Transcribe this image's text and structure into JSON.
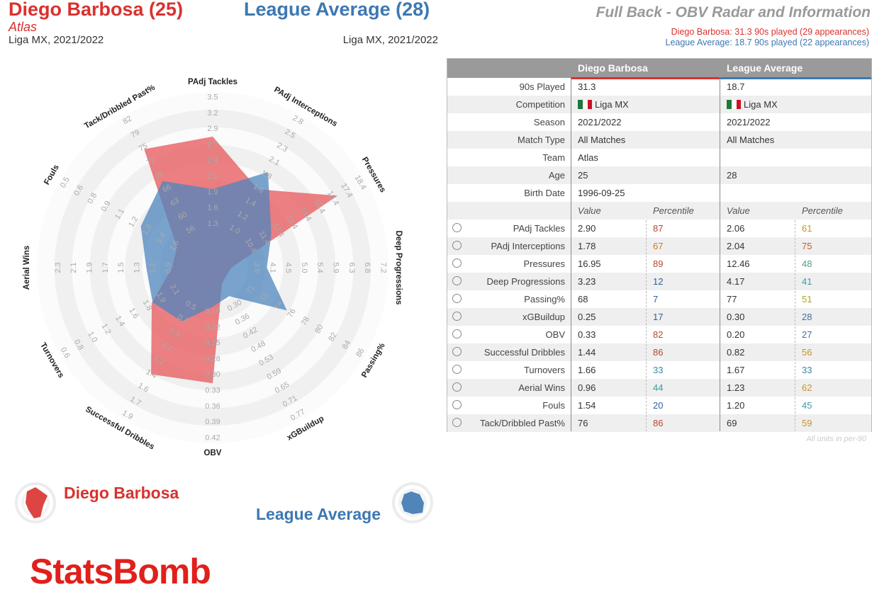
{
  "header": {
    "player_title": "Diego Barbosa (25)",
    "player_team": "Atlas",
    "player_league": "Liga MX, 2021/2022",
    "avg_title": "League Average (28)",
    "avg_league": "Liga MX, 2021/2022",
    "right_title": "Full Back - OBV Radar and Information",
    "player_line": "Diego Barbosa: 31.3 90s played (29 appearances)",
    "avg_line": "League Average: 18.7 90s played (22 appearances)"
  },
  "colors": {
    "player": "#d9312f",
    "average": "#3d78b2",
    "ring": "#efefef"
  },
  "chart_data": {
    "type": "radar",
    "series": [
      {
        "name": "Diego Barbosa",
        "color": "#e8696b",
        "values": [
          2.9,
          1.78,
          16.95,
          3.23,
          68,
          0.25,
          0.33,
          1.44,
          1.66,
          0.96,
          1.54,
          76
        ]
      },
      {
        "name": "League Average",
        "color": "#4e86bd",
        "values": [
          2.06,
          2.04,
          12.46,
          4.17,
          77,
          0.3,
          0.2,
          0.82,
          1.67,
          1.23,
          1.2,
          69
        ]
      }
    ],
    "axes": [
      {
        "label": "PAdj Tackles",
        "ticks": [
          "1.3",
          "1.6",
          "1.9",
          "2.1",
          "2.4",
          "2.7",
          "2.9",
          "3.2",
          "3.5"
        ],
        "min": 1.05,
        "max": 3.5
      },
      {
        "label": "PAdj Interceptions",
        "ticks": [
          "1.0",
          "1.2",
          "1.4",
          "1.6",
          "1.8",
          "2.1",
          "2.3",
          "2.5",
          "2.8"
        ],
        "min": 0.8,
        "max": 2.8
      },
      {
        "label": "Pressures",
        "ticks": [
          "10.4",
          "11.4",
          "12.4",
          "13.4",
          "14.4",
          "15.4",
          "16.4",
          "17.4",
          "18.4"
        ],
        "min": 9.4,
        "max": 18.4
      },
      {
        "label": "Deep Progressions",
        "ticks": [
          "3.6",
          "4.1",
          "4.5",
          "5.0",
          "5.4",
          "5.9",
          "6.3",
          "6.8",
          "7.2"
        ],
        "min": 3.15,
        "max": 7.2
      },
      {
        "label": "Passing%",
        "ticks": [
          "71",
          "73",
          "74",
          "76",
          "78",
          "80",
          "82",
          "84",
          "86"
        ],
        "min": 69.4,
        "max": 86
      },
      {
        "label": "xGBuildup",
        "ticks": [
          "0.30",
          "0.36",
          "0.42",
          "0.48",
          "0.53",
          "0.59",
          "0.65",
          "0.71",
          "0.77"
        ],
        "min": 0.24,
        "max": 0.77
      },
      {
        "label": "OBV",
        "ticks": [
          "0.19",
          "0.22",
          "0.25",
          "0.28",
          "0.30",
          "0.33",
          "0.36",
          "0.39",
          "0.42"
        ],
        "min": 0.16,
        "max": 0.42
      },
      {
        "label": "Successful Dribbles",
        "ticks": [
          "0.5",
          "0.7",
          "0.9",
          "1.1",
          "1.2",
          "1.4",
          "1.6",
          "1.7",
          "1.9"
        ],
        "min": 0.35,
        "max": 1.9
      },
      {
        "label": "Turnovers",
        "ticks": [
          "2.1",
          "1.9",
          "1.8",
          "1.6",
          "1.4",
          "1.2",
          "1.0",
          "0.8",
          "0.6"
        ],
        "min": 2.25,
        "max": 0.6
      },
      {
        "label": "Aerial Wins",
        "ticks": [
          "0.9",
          "1.1",
          "1.3",
          "1.5",
          "1.7",
          "1.9",
          "2.1",
          "2.3"
        ],
        "min": 0.7,
        "max": 2.3
      },
      {
        "label": "Fouls",
        "ticks": [
          "1.6",
          "1.4",
          "1.3",
          "1.2",
          "1.1",
          "0.9",
          "0.8",
          "0.6",
          "0.5"
        ],
        "min": 1.75,
        "max": 0.5
      },
      {
        "label": "Tack/Dribbled Past%",
        "ticks": [
          "56",
          "60",
          "63",
          "66",
          "69",
          "72",
          "75",
          "79",
          "82"
        ],
        "min": 53,
        "max": 82
      }
    ],
    "rings": 10
  },
  "table": {
    "col_player": "Diego Barbosa",
    "col_avg": "League Average",
    "info_rows": [
      {
        "label": "90s Played",
        "player": "31.3",
        "avg": "18.7"
      },
      {
        "label": "Competition",
        "player": "Liga MX",
        "avg": "Liga MX",
        "flag": true
      },
      {
        "label": "Season",
        "player": "2021/2022",
        "avg": "2021/2022"
      },
      {
        "label": "Match Type",
        "player": "All Matches",
        "avg": "All Matches"
      },
      {
        "label": "Team",
        "player": "Atlas",
        "avg": ""
      },
      {
        "label": "Age",
        "player": "25",
        "avg": "28"
      },
      {
        "label": "Birth Date",
        "player": "1996-09-25",
        "avg": ""
      }
    ],
    "sub_value": "Value",
    "sub_percentile": "Percentile",
    "stat_rows": [
      {
        "label": "PAdj Tackles",
        "pv": "2.90",
        "pp": "87",
        "pc": "#b5482d",
        "av": "2.06",
        "ap": "61",
        "ac": "#c9932a"
      },
      {
        "label": "PAdj Interceptions",
        "pv": "1.78",
        "pp": "67",
        "pc": "#cf7a1f",
        "av": "2.04",
        "ap": "75",
        "ac": "#c45a2a"
      },
      {
        "label": "Pressures",
        "pv": "16.95",
        "pp": "89",
        "pc": "#b5482d",
        "av": "12.46",
        "ap": "48",
        "ac": "#4aa57a"
      },
      {
        "label": "Deep Progressions",
        "pv": "3.23",
        "pp": "12",
        "pc": "#2f5f9e",
        "av": "4.17",
        "ap": "41",
        "ac": "#3a9aa8"
      },
      {
        "label": "Passing%",
        "pv": "68",
        "pp": "7",
        "pc": "#2f5f9e",
        "av": "77",
        "ap": "51",
        "ac": "#b3a12b"
      },
      {
        "label": "xGBuildup",
        "pv": "0.25",
        "pp": "17",
        "pc": "#2f5f9e",
        "av": "0.30",
        "ap": "28",
        "ac": "#3f6fa8"
      },
      {
        "label": "OBV",
        "pv": "0.33",
        "pp": "82",
        "pc": "#b5482d",
        "av": "0.20",
        "ap": "27",
        "ac": "#3f6fa8"
      },
      {
        "label": "Successful Dribbles",
        "pv": "1.44",
        "pp": "86",
        "pc": "#b5482d",
        "av": "0.82",
        "ap": "56",
        "ac": "#c9932a"
      },
      {
        "label": "Turnovers",
        "pv": "1.66",
        "pp": "33",
        "pc": "#3a8aa8",
        "av": "1.67",
        "ap": "33",
        "ac": "#3a8aa8"
      },
      {
        "label": "Aerial Wins",
        "pv": "0.96",
        "pp": "44",
        "pc": "#3a9aa8",
        "av": "1.23",
        "ap": "62",
        "ac": "#c9932a"
      },
      {
        "label": "Fouls",
        "pv": "1.54",
        "pp": "20",
        "pc": "#2f5f9e",
        "av": "1.20",
        "ap": "45",
        "ac": "#3a9aa8"
      },
      {
        "label": "Tack/Dribbled Past%",
        "pv": "76",
        "pp": "86",
        "pc": "#b5482d",
        "av": "69",
        "ap": "59",
        "ac": "#c9932a"
      }
    ],
    "footnote": "All units in per-90"
  },
  "legend": {
    "player": "Diego Barbosa",
    "average": "League Average"
  },
  "logo": "StatsBomb"
}
